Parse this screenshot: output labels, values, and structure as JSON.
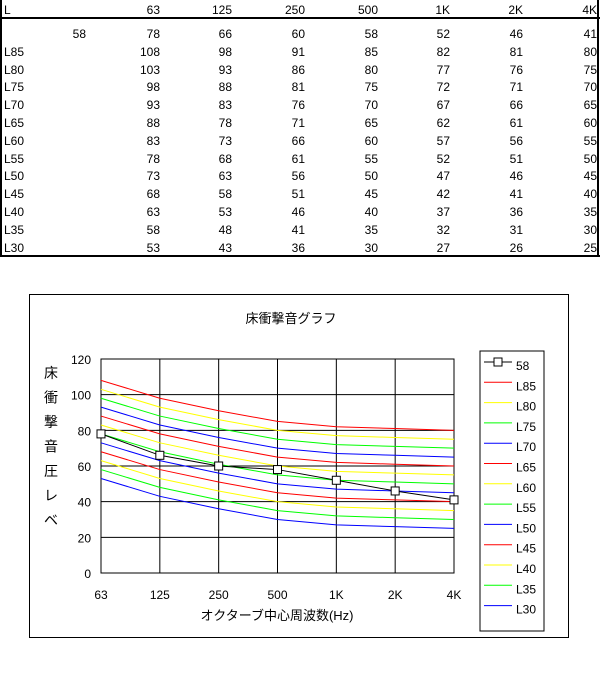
{
  "table": {
    "corner_label": "L",
    "columns": [
      "63",
      "125",
      "250",
      "500",
      "1K",
      "2K",
      "4K"
    ],
    "rows": [
      {
        "label": "",
        "lead": "58",
        "values": [
          "78",
          "66",
          "60",
          "58",
          "52",
          "46",
          "41"
        ]
      },
      {
        "label": "L85",
        "lead": "",
        "values": [
          "108",
          "98",
          "91",
          "85",
          "82",
          "81",
          "80"
        ]
      },
      {
        "label": "L80",
        "lead": "",
        "values": [
          "103",
          "93",
          "86",
          "80",
          "77",
          "76",
          "75"
        ]
      },
      {
        "label": "L75",
        "lead": "",
        "values": [
          "98",
          "88",
          "81",
          "75",
          "72",
          "71",
          "70"
        ]
      },
      {
        "label": "L70",
        "lead": "",
        "values": [
          "93",
          "83",
          "76",
          "70",
          "67",
          "66",
          "65"
        ]
      },
      {
        "label": "L65",
        "lead": "",
        "values": [
          "88",
          "78",
          "71",
          "65",
          "62",
          "61",
          "60"
        ]
      },
      {
        "label": "L60",
        "lead": "",
        "values": [
          "83",
          "73",
          "66",
          "60",
          "57",
          "56",
          "55"
        ]
      },
      {
        "label": "L55",
        "lead": "",
        "values": [
          "78",
          "68",
          "61",
          "55",
          "52",
          "51",
          "50"
        ]
      },
      {
        "label": "L50",
        "lead": "",
        "values": [
          "73",
          "63",
          "56",
          "50",
          "47",
          "46",
          "45"
        ]
      },
      {
        "label": "L45",
        "lead": "",
        "values": [
          "68",
          "58",
          "51",
          "45",
          "42",
          "41",
          "40"
        ]
      },
      {
        "label": "L40",
        "lead": "",
        "values": [
          "63",
          "53",
          "46",
          "40",
          "37",
          "36",
          "35"
        ]
      },
      {
        "label": "L35",
        "lead": "",
        "values": [
          "58",
          "48",
          "41",
          "35",
          "32",
          "31",
          "30"
        ]
      },
      {
        "label": "L30",
        "lead": "",
        "values": [
          "53",
          "43",
          "36",
          "30",
          "27",
          "26",
          "25"
        ]
      }
    ]
  },
  "chart_data": {
    "type": "line",
    "title": "床衝撃音グラフ",
    "xlabel": "オクターブ中心周波数(Hz)",
    "ylabel": "床衝撃音圧レベ",
    "categories": [
      "63",
      "125",
      "250",
      "500",
      "1K",
      "2K",
      "4K"
    ],
    "ylim": [
      0,
      120
    ],
    "yticks": [
      0,
      20,
      40,
      60,
      80,
      100,
      120
    ],
    "grid": true,
    "legend_position": "right",
    "series": [
      {
        "name": "58",
        "color": "#000000",
        "marker": "square",
        "values": [
          78,
          66,
          60,
          58,
          52,
          46,
          41
        ]
      },
      {
        "name": "L85",
        "color": "#ff0000",
        "values": [
          108,
          98,
          91,
          85,
          82,
          81,
          80
        ]
      },
      {
        "name": "L80",
        "color": "#ffff00",
        "values": [
          103,
          93,
          86,
          80,
          77,
          76,
          75
        ]
      },
      {
        "name": "L75",
        "color": "#00ff00",
        "values": [
          98,
          88,
          81,
          75,
          72,
          71,
          70
        ]
      },
      {
        "name": "L70",
        "color": "#0000ff",
        "values": [
          93,
          83,
          76,
          70,
          67,
          66,
          65
        ]
      },
      {
        "name": "L65",
        "color": "#ff0000",
        "values": [
          88,
          78,
          71,
          65,
          62,
          61,
          60
        ]
      },
      {
        "name": "L60",
        "color": "#ffff00",
        "values": [
          83,
          73,
          66,
          60,
          57,
          56,
          55
        ]
      },
      {
        "name": "L55",
        "color": "#00ff00",
        "values": [
          78,
          68,
          61,
          55,
          52,
          51,
          50
        ]
      },
      {
        "name": "L50",
        "color": "#0000ff",
        "values": [
          73,
          63,
          56,
          50,
          47,
          46,
          45
        ]
      },
      {
        "name": "L45",
        "color": "#ff0000",
        "values": [
          68,
          58,
          51,
          45,
          42,
          41,
          40
        ]
      },
      {
        "name": "L40",
        "color": "#ffff00",
        "values": [
          63,
          53,
          46,
          40,
          37,
          36,
          35
        ]
      },
      {
        "name": "L35",
        "color": "#00ff00",
        "values": [
          58,
          48,
          41,
          35,
          32,
          31,
          30
        ]
      },
      {
        "name": "L30",
        "color": "#0000ff",
        "values": [
          53,
          43,
          36,
          30,
          27,
          26,
          25
        ]
      }
    ]
  }
}
